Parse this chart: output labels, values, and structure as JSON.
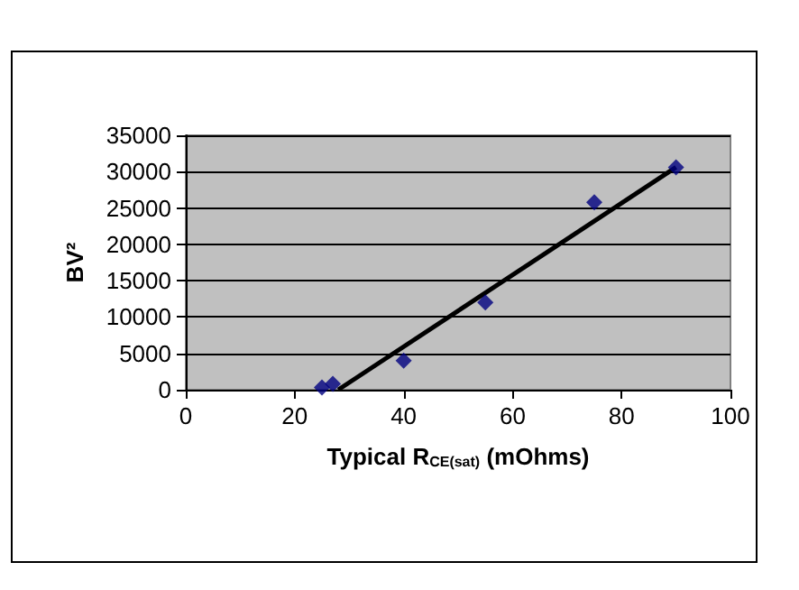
{
  "chart_data": {
    "type": "scatter",
    "xlabel": "Typical R$_{CE(sat)}$ (mOhms)",
    "ylabel": "BV²",
    "xlim": [
      0,
      100
    ],
    "xticks": [
      0,
      20,
      40,
      60,
      80,
      100
    ],
    "ylim": [
      0,
      35000
    ],
    "yticks": [
      0,
      5000,
      10000,
      15000,
      20000,
      25000,
      30000,
      35000
    ],
    "grid": "y",
    "marker": "diamond",
    "series": [
      {
        "color": "#000080",
        "x": [
          25,
          27,
          40,
          55,
          75,
          90
        ],
        "values": [
          300,
          800,
          4000,
          12000,
          25800,
          30600
        ]
      },
      {
        "type": "line",
        "color": "#000000",
        "marker": "none",
        "x": [
          28,
          90
        ],
        "values": [
          0,
          30600
        ]
      }
    ]
  }
}
